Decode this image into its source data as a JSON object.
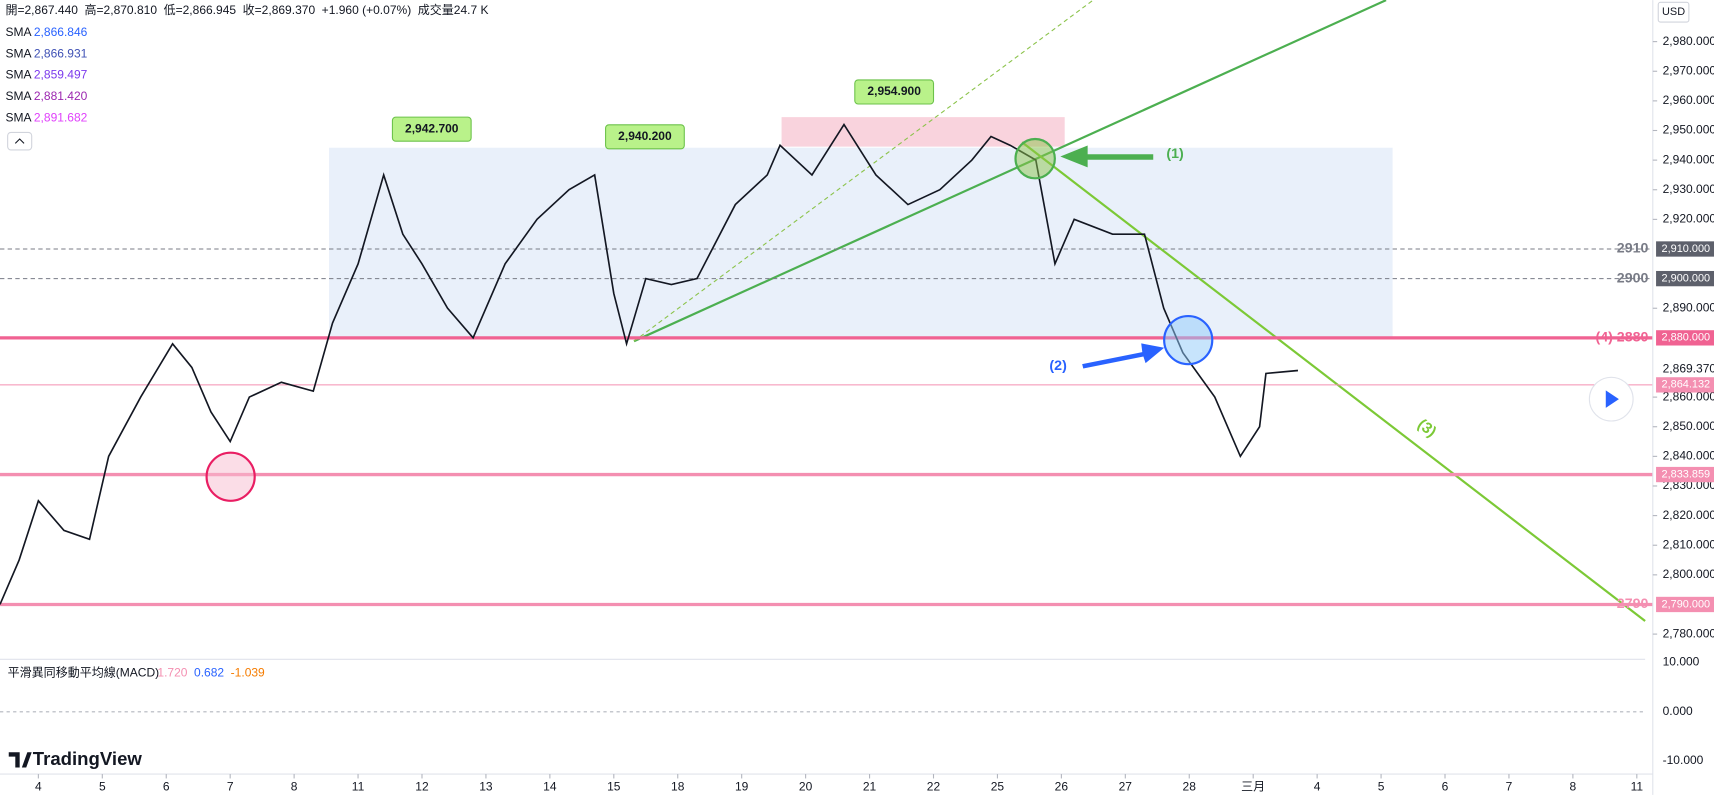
{
  "header": {
    "items": [
      "開=2,867.440",
      "高=2,870.810",
      "低=2,866.945",
      "收=2,869.370",
      "+1.960 (+0.07%)",
      "成交量24.7 K"
    ]
  },
  "currency": "USD",
  "sma": [
    {
      "name": "SMA",
      "value": "2,866.846",
      "color": "#2962ff"
    },
    {
      "name": "SMA",
      "value": "2,866.931",
      "color": "#3f51b5"
    },
    {
      "name": "SMA",
      "value": "2,859.497",
      "color": "#7c3aed"
    },
    {
      "name": "SMA",
      "value": "2,881.420",
      "color": "#9c27b0"
    },
    {
      "name": "SMA",
      "value": "2,891.682",
      "color": "#e040fb"
    }
  ],
  "macd": {
    "title": "平滑異同移動平均線(MACD)",
    "values": [
      {
        "text": "1.720",
        "color": "#f48fb1"
      },
      {
        "text": "0.682",
        "color": "#2962ff"
      },
      {
        "text": "-1.039",
        "color": "#f57c00"
      }
    ],
    "axis": [
      "10.000",
      "0.000",
      "-10.000"
    ]
  },
  "brand": "TradingView",
  "annotations": [
    "2,942.700",
    "2,940.200",
    "2,954.900",
    "(1)",
    "(2)",
    "(3)"
  ],
  "chart_data": {
    "type": "line",
    "color": "#131722",
    "x": [
      -0.6,
      -0.3,
      0,
      0.4,
      0.8,
      1.1,
      1.6,
      2.1,
      2.4,
      2.7,
      3.0,
      3.3,
      3.8,
      4.3,
      4.6,
      5.0,
      5.4,
      5.7,
      6.0,
      6.4,
      6.8,
      7.3,
      7.8,
      8.3,
      8.7,
      9.0,
      9.2,
      9.5,
      9.9,
      10.3,
      10.9,
      11.4,
      11.6,
      12.1,
      12.6,
      13.1,
      13.6,
      14.1,
      14.6,
      14.9,
      15.2,
      15.6,
      15.9,
      16.2,
      16.8,
      17.3,
      17.6,
      17.9,
      18.4,
      18.8,
      19.1,
      19.2,
      19.7
    ],
    "values": [
      2790,
      2805,
      2825,
      2815,
      2812,
      2840,
      2860,
      2878,
      2870,
      2855,
      2845,
      2860,
      2865,
      2862,
      2885,
      2905,
      2935,
      2915,
      2905,
      2890,
      2880,
      2905,
      2920,
      2930,
      2935,
      2895,
      2878,
      2900,
      2898,
      2900,
      2925,
      2935,
      2945,
      2935,
      2952,
      2935,
      2925,
      2930,
      2940,
      2948,
      2945,
      2940,
      2905,
      2920,
      2915,
      2915,
      2890,
      2875,
      2860,
      2840,
      2850,
      2868,
      2869
    ],
    "xlim": [
      -0.6,
      25.13
    ],
    "ylim": [
      2772.6,
      2994
    ],
    "xticks": [
      {
        "value": 0,
        "label": "4"
      },
      {
        "value": 1,
        "label": "5"
      },
      {
        "value": 2,
        "label": "6"
      },
      {
        "value": 3,
        "label": "7"
      },
      {
        "value": 4,
        "label": "8"
      },
      {
        "value": 5,
        "label": "11"
      },
      {
        "value": 6,
        "label": "12"
      },
      {
        "value": 7,
        "label": "13"
      },
      {
        "value": 8,
        "label": "14"
      },
      {
        "value": 9,
        "label": "15"
      },
      {
        "value": 10,
        "label": "18"
      },
      {
        "value": 11,
        "label": "19"
      },
      {
        "value": 12,
        "label": "20"
      },
      {
        "value": 13,
        "label": "21"
      },
      {
        "value": 14,
        "label": "22"
      },
      {
        "value": 15,
        "label": "25"
      },
      {
        "value": 16,
        "label": "26"
      },
      {
        "value": 17,
        "label": "27"
      },
      {
        "value": 18,
        "label": "28"
      },
      {
        "value": 19,
        "label": "三月"
      },
      {
        "value": 20,
        "label": "4"
      },
      {
        "value": 21,
        "label": "5"
      },
      {
        "value": 22,
        "label": "6"
      },
      {
        "value": 23,
        "label": "7"
      },
      {
        "value": 24,
        "label": "8"
      },
      {
        "value": 25,
        "label": "11"
      }
    ],
    "yticks": [
      {
        "value": 2980,
        "label": "2,980.000"
      },
      {
        "value": 2970,
        "label": "2,970.000"
      },
      {
        "value": 2960,
        "label": "2,960.000"
      },
      {
        "value": 2950,
        "label": "2,950.000"
      },
      {
        "value": 2940,
        "label": "2,940.000"
      },
      {
        "value": 2930,
        "label": "2,930.000"
      },
      {
        "value": 2920,
        "label": "2,920.000"
      },
      {
        "value": 2890,
        "label": "2,890.000"
      },
      {
        "value": 2860,
        "label": "2,860.000"
      },
      {
        "value": 2850,
        "label": "2,850.000"
      },
      {
        "value": 2840,
        "label": "2,840.000"
      },
      {
        "value": 2830,
        "label": "2,830.000"
      },
      {
        "value": 2820,
        "label": "2,820.000"
      },
      {
        "value": 2810,
        "label": "2,810.000"
      },
      {
        "value": 2800,
        "label": "2,800.000"
      },
      {
        "value": 2780,
        "label": "2,780.000"
      }
    ],
    "levels": [
      {
        "value": 2910,
        "label": "2,910.000",
        "tag": "2910",
        "style": "dashed",
        "color": "#787b86"
      },
      {
        "value": 2900,
        "label": "2,900.000",
        "tag": "2900",
        "style": "dashed",
        "color": "#787b86"
      },
      {
        "value": 2880,
        "label": "2,880.000",
        "tag": "(4) 2880",
        "style": "thick",
        "color": "#f06292"
      },
      {
        "value": 2869.37,
        "label": "2,869.370",
        "style": "none",
        "color": "#131722"
      },
      {
        "value": 2864.132,
        "label": "2,864.132",
        "style": "thin",
        "color": "#f48fb1"
      },
      {
        "value": 2833.859,
        "label": "2,833.859",
        "style": "thick",
        "color": "#f48fb1"
      },
      {
        "value": 2790,
        "label": "2,790.000",
        "tag": "2790",
        "style": "thick",
        "color": "#f48fb1"
      }
    ]
  }
}
